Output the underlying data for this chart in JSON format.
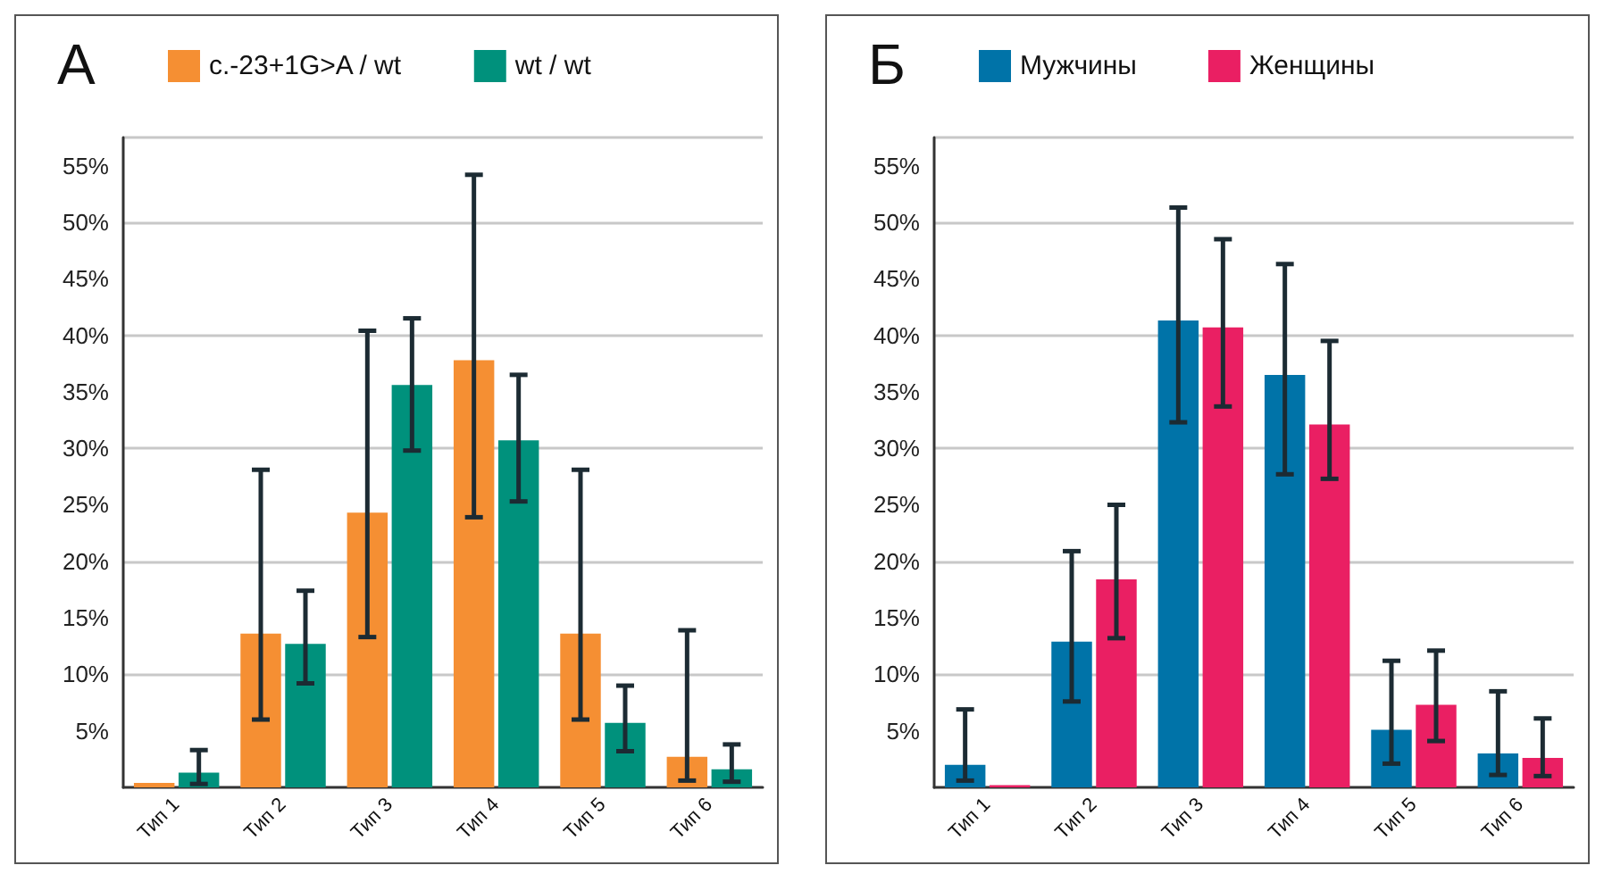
{
  "chart_data": [
    {
      "type": "bar",
      "title": "А",
      "categories": [
        "Тип 1",
        "Тип 2",
        "Тип 3",
        "Тип 4",
        "Тип 5",
        "Тип 6"
      ],
      "ylim": [
        0,
        57.5
      ],
      "yticks": [
        {
          "value": 5,
          "label": "5%"
        },
        {
          "value": 10,
          "label": "10%"
        },
        {
          "value": 15,
          "label": "15%"
        },
        {
          "value": 20,
          "label": "20%"
        },
        {
          "value": 25,
          "label": "25%"
        },
        {
          "value": 30,
          "label": "30%"
        },
        {
          "value": 35,
          "label": "35%"
        },
        {
          "value": 40,
          "label": "40%"
        },
        {
          "value": 45,
          "label": "45%"
        },
        {
          "value": 50,
          "label": "50%"
        },
        {
          "value": 55,
          "label": "55%"
        }
      ],
      "grid": "y",
      "legend": "top",
      "series": [
        {
          "name": "c.-23+1G>A / wt",
          "color": "#f58f33",
          "values": [
            0.4,
            13.6,
            24.3,
            37.8,
            13.6,
            2.7
          ],
          "errors": [
            null,
            [
              6.0,
              28.1
            ],
            [
              13.3,
              40.4
            ],
            [
              23.9,
              54.2
            ],
            [
              6.0,
              28.1
            ],
            [
              0.6,
              13.9
            ]
          ]
        },
        {
          "name": "wt / wt",
          "color": "#00917c",
          "values": [
            1.3,
            12.7,
            35.6,
            30.7,
            5.7,
            1.6
          ],
          "errors": [
            [
              0.3,
              3.3
            ],
            [
              9.2,
              17.4
            ],
            [
              29.8,
              41.5
            ],
            [
              25.3,
              36.5
            ],
            [
              3.2,
              9.0
            ],
            [
              0.5,
              3.8
            ]
          ]
        }
      ]
    },
    {
      "type": "bar",
      "title": "Б",
      "categories": [
        "Тип 1",
        "Тип 2",
        "Тип 3",
        "Тип 4",
        "Тип 5",
        "Тип 6"
      ],
      "ylim": [
        0,
        57.5
      ],
      "yticks": [
        {
          "value": 5,
          "label": "5%"
        },
        {
          "value": 10,
          "label": "10%"
        },
        {
          "value": 15,
          "label": "15%"
        },
        {
          "value": 20,
          "label": "20%"
        },
        {
          "value": 25,
          "label": "25%"
        },
        {
          "value": 30,
          "label": "30%"
        },
        {
          "value": 35,
          "label": "35%"
        },
        {
          "value": 40,
          "label": "40%"
        },
        {
          "value": 45,
          "label": "45%"
        },
        {
          "value": 50,
          "label": "50%"
        },
        {
          "value": 55,
          "label": "55%"
        }
      ],
      "grid": "y",
      "legend": "top",
      "series": [
        {
          "name": "Мужчины",
          "color": "#0073a8",
          "values": [
            2.0,
            12.9,
            41.3,
            36.5,
            5.1,
            3.0
          ],
          "errors": [
            [
              0.6,
              6.9
            ],
            [
              7.6,
              20.9
            ],
            [
              32.3,
              51.3
            ],
            [
              27.7,
              46.3
            ],
            [
              2.1,
              11.2
            ],
            [
              1.1,
              8.5
            ]
          ]
        },
        {
          "name": "Женщины",
          "color": "#ea1f63",
          "values": [
            0.2,
            18.4,
            40.7,
            32.1,
            7.3,
            2.6
          ],
          "errors": [
            null,
            [
              13.2,
              25.0
            ],
            [
              33.7,
              48.5
            ],
            [
              27.3,
              39.5
            ],
            [
              4.1,
              12.1
            ],
            [
              1.0,
              6.1
            ]
          ]
        }
      ]
    }
  ]
}
